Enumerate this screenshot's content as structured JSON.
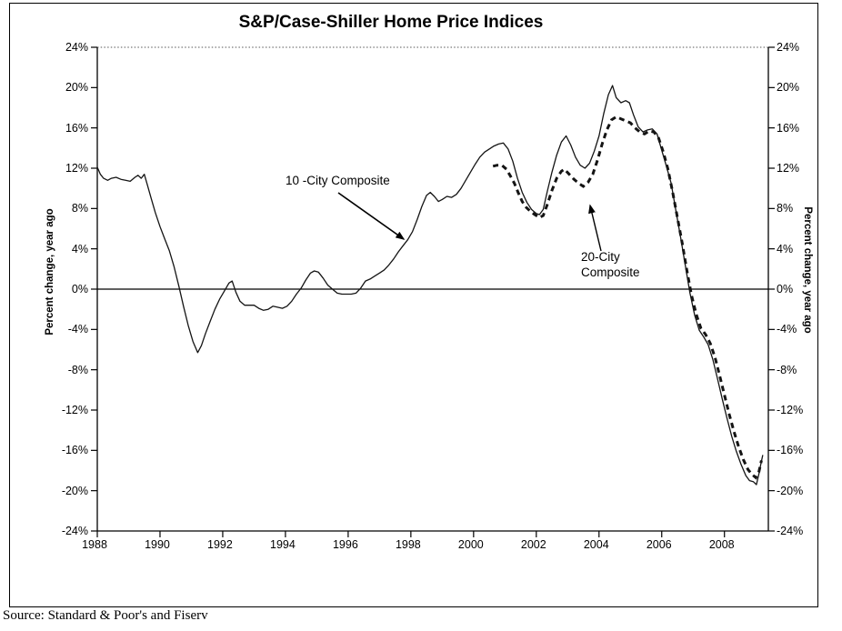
{
  "title": "S&P/Case-Shiller Home Price Indices",
  "source_note": "Source: Standard & Poor's and Fiserv",
  "axes": {
    "left_title": "Percent change, year ago",
    "right_title": "Percent change, year ago"
  },
  "annotations": {
    "series1_label": "10 -City Composite",
    "series2_label_line1": "20-City",
    "series2_label_line2": "Composite"
  },
  "colors": {
    "background": "#ffffff",
    "line": "#141414",
    "text": "#000000",
    "dotted_grid": "#555555"
  },
  "chart_data": {
    "type": "line",
    "title": "S&P/Case-Shiller Home Price Indices",
    "xlabel": "",
    "ylabel": "Percent change, year ago",
    "ylim": [
      -24,
      24
    ],
    "xlim": [
      1988,
      2009.4
    ],
    "y_tick_values": [
      24,
      20,
      16,
      12,
      8,
      4,
      0,
      -4,
      -8,
      -12,
      -16,
      -20,
      -24
    ],
    "y_tick_labels": [
      "24%",
      "20%",
      "16%",
      "12%",
      "8%",
      "4%",
      "0%",
      "-4%",
      "-8%",
      "-12%",
      "-16%",
      "-20%",
      "-24%"
    ],
    "x_tick_values": [
      1988,
      1990,
      1992,
      1994,
      1996,
      1998,
      2000,
      2002,
      2004,
      2006,
      2008
    ],
    "x_tick_labels": [
      "1988",
      "1990",
      "1992",
      "1994",
      "1996",
      "1998",
      "2000",
      "2002",
      "2004",
      "2006",
      "2008"
    ],
    "grid": {
      "top_border_24pct": "dotted",
      "zero_line": "solid",
      "other_gridlines": "none"
    },
    "legend_position": "inline-annotations-with-arrows",
    "series": [
      {
        "name": "10-City Composite",
        "style": "solid",
        "points": [
          [
            1988.0,
            12.1
          ],
          [
            1988.1,
            11.4
          ],
          [
            1988.2,
            11.0
          ],
          [
            1988.33,
            10.8
          ],
          [
            1988.45,
            11.0
          ],
          [
            1988.6,
            11.1
          ],
          [
            1988.75,
            10.9
          ],
          [
            1988.9,
            10.8
          ],
          [
            1989.05,
            10.7
          ],
          [
            1989.2,
            11.1
          ],
          [
            1989.3,
            11.3
          ],
          [
            1989.4,
            11.0
          ],
          [
            1989.5,
            11.4
          ],
          [
            1989.6,
            10.3
          ],
          [
            1989.72,
            9.0
          ],
          [
            1989.85,
            7.6
          ],
          [
            1990.0,
            6.2
          ],
          [
            1990.15,
            5.0
          ],
          [
            1990.3,
            3.8
          ],
          [
            1990.45,
            2.2
          ],
          [
            1990.6,
            0.3
          ],
          [
            1990.75,
            -1.7
          ],
          [
            1990.9,
            -3.6
          ],
          [
            1991.05,
            -5.2
          ],
          [
            1991.2,
            -6.3
          ],
          [
            1991.32,
            -5.6
          ],
          [
            1991.45,
            -4.4
          ],
          [
            1991.6,
            -3.2
          ],
          [
            1991.75,
            -2.0
          ],
          [
            1991.9,
            -1.0
          ],
          [
            1992.05,
            -0.2
          ],
          [
            1992.2,
            0.6
          ],
          [
            1992.3,
            0.8
          ],
          [
            1992.42,
            -0.3
          ],
          [
            1992.55,
            -1.2
          ],
          [
            1992.7,
            -1.6
          ],
          [
            1992.85,
            -1.6
          ],
          [
            1993.0,
            -1.6
          ],
          [
            1993.15,
            -1.9
          ],
          [
            1993.3,
            -2.1
          ],
          [
            1993.45,
            -2.0
          ],
          [
            1993.6,
            -1.7
          ],
          [
            1993.75,
            -1.8
          ],
          [
            1993.9,
            -1.9
          ],
          [
            1994.05,
            -1.7
          ],
          [
            1994.2,
            -1.2
          ],
          [
            1994.35,
            -0.5
          ],
          [
            1994.5,
            0.1
          ],
          [
            1994.65,
            0.9
          ],
          [
            1994.8,
            1.6
          ],
          [
            1994.92,
            1.8
          ],
          [
            1995.05,
            1.7
          ],
          [
            1995.2,
            1.1
          ],
          [
            1995.35,
            0.4
          ],
          [
            1995.5,
            0.0
          ],
          [
            1995.65,
            -0.4
          ],
          [
            1995.8,
            -0.5
          ],
          [
            1995.95,
            -0.5
          ],
          [
            1996.1,
            -0.5
          ],
          [
            1996.25,
            -0.4
          ],
          [
            1996.4,
            0.1
          ],
          [
            1996.55,
            0.8
          ],
          [
            1996.7,
            1.0
          ],
          [
            1996.85,
            1.3
          ],
          [
            1997.0,
            1.6
          ],
          [
            1997.15,
            1.9
          ],
          [
            1997.3,
            2.4
          ],
          [
            1997.45,
            3.0
          ],
          [
            1997.6,
            3.7
          ],
          [
            1997.75,
            4.3
          ],
          [
            1997.9,
            4.9
          ],
          [
            1998.05,
            5.7
          ],
          [
            1998.2,
            6.9
          ],
          [
            1998.35,
            8.2
          ],
          [
            1998.5,
            9.3
          ],
          [
            1998.62,
            9.6
          ],
          [
            1998.75,
            9.2
          ],
          [
            1998.88,
            8.7
          ],
          [
            1999.0,
            8.9
          ],
          [
            1999.15,
            9.2
          ],
          [
            1999.3,
            9.1
          ],
          [
            1999.45,
            9.4
          ],
          [
            1999.6,
            10.0
          ],
          [
            1999.75,
            10.8
          ],
          [
            1999.9,
            11.6
          ],
          [
            2000.05,
            12.4
          ],
          [
            2000.2,
            13.1
          ],
          [
            2000.35,
            13.6
          ],
          [
            2000.5,
            13.9
          ],
          [
            2000.65,
            14.2
          ],
          [
            2000.8,
            14.4
          ],
          [
            2000.95,
            14.5
          ],
          [
            2001.1,
            13.9
          ],
          [
            2001.25,
            12.7
          ],
          [
            2001.4,
            11.0
          ],
          [
            2001.55,
            9.6
          ],
          [
            2001.7,
            8.6
          ],
          [
            2001.85,
            7.9
          ],
          [
            2002.0,
            7.5
          ],
          [
            2002.1,
            7.4
          ],
          [
            2002.22,
            7.9
          ],
          [
            2002.35,
            9.7
          ],
          [
            2002.5,
            11.6
          ],
          [
            2002.65,
            13.3
          ],
          [
            2002.8,
            14.6
          ],
          [
            2002.95,
            15.2
          ],
          [
            2003.1,
            14.3
          ],
          [
            2003.25,
            13.1
          ],
          [
            2003.4,
            12.3
          ],
          [
            2003.55,
            12.0
          ],
          [
            2003.7,
            12.5
          ],
          [
            2003.85,
            13.7
          ],
          [
            2004.0,
            15.2
          ],
          [
            2004.15,
            17.4
          ],
          [
            2004.3,
            19.3
          ],
          [
            2004.43,
            20.2
          ],
          [
            2004.55,
            19.0
          ],
          [
            2004.7,
            18.5
          ],
          [
            2004.85,
            18.7
          ],
          [
            2004.97,
            18.5
          ],
          [
            2005.1,
            17.3
          ],
          [
            2005.25,
            16.1
          ],
          [
            2005.4,
            15.6
          ],
          [
            2005.55,
            15.8
          ],
          [
            2005.7,
            15.9
          ],
          [
            2005.85,
            15.4
          ],
          [
            2006.0,
            13.8
          ],
          [
            2006.15,
            12.2
          ],
          [
            2006.3,
            10.5
          ],
          [
            2006.45,
            7.8
          ],
          [
            2006.6,
            5.2
          ],
          [
            2006.75,
            2.4
          ],
          [
            2006.9,
            -0.4
          ],
          [
            2007.05,
            -2.6
          ],
          [
            2007.2,
            -4.1
          ],
          [
            2007.33,
            -4.7
          ],
          [
            2007.48,
            -5.5
          ],
          [
            2007.63,
            -7.0
          ],
          [
            2007.78,
            -8.9
          ],
          [
            2007.93,
            -10.9
          ],
          [
            2008.08,
            -12.8
          ],
          [
            2008.23,
            -14.6
          ],
          [
            2008.38,
            -16.1
          ],
          [
            2008.53,
            -17.4
          ],
          [
            2008.68,
            -18.5
          ],
          [
            2008.8,
            -19.0
          ],
          [
            2008.92,
            -19.1
          ],
          [
            2009.02,
            -19.4
          ],
          [
            2009.1,
            -18.3
          ],
          [
            2009.17,
            -17.2
          ],
          [
            2009.22,
            -16.5
          ]
        ]
      },
      {
        "name": "20-City Composite",
        "style": "dashed",
        "points": [
          [
            2000.62,
            12.2
          ],
          [
            2000.75,
            12.3
          ],
          [
            2000.9,
            12.3
          ],
          [
            2001.05,
            11.9
          ],
          [
            2001.18,
            11.2
          ],
          [
            2001.3,
            10.5
          ],
          [
            2001.42,
            9.6
          ],
          [
            2001.55,
            8.7
          ],
          [
            2001.68,
            8.1
          ],
          [
            2001.82,
            7.7
          ],
          [
            2001.95,
            7.4
          ],
          [
            2002.1,
            7.1
          ],
          [
            2002.22,
            7.3
          ],
          [
            2002.35,
            8.4
          ],
          [
            2002.5,
            9.8
          ],
          [
            2002.65,
            11.0
          ],
          [
            2002.8,
            11.7
          ],
          [
            2002.9,
            11.9
          ],
          [
            2003.05,
            11.4
          ],
          [
            2003.2,
            10.9
          ],
          [
            2003.35,
            10.5
          ],
          [
            2003.5,
            10.2
          ],
          [
            2003.65,
            10.6
          ],
          [
            2003.8,
            11.4
          ],
          [
            2003.95,
            12.8
          ],
          [
            2004.1,
            14.4
          ],
          [
            2004.25,
            15.8
          ],
          [
            2004.4,
            16.8
          ],
          [
            2004.55,
            17.1
          ],
          [
            2004.7,
            16.9
          ],
          [
            2004.85,
            16.7
          ],
          [
            2005.0,
            16.5
          ],
          [
            2005.15,
            16.0
          ],
          [
            2005.3,
            15.6
          ],
          [
            2005.45,
            15.4
          ],
          [
            2005.6,
            15.7
          ],
          [
            2005.75,
            15.6
          ],
          [
            2005.9,
            15.0
          ],
          [
            2006.05,
            13.6
          ],
          [
            2006.2,
            11.9
          ],
          [
            2006.35,
            9.6
          ],
          [
            2006.5,
            7.1
          ],
          [
            2006.65,
            4.6
          ],
          [
            2006.8,
            1.9
          ],
          [
            2006.95,
            -0.6
          ],
          [
            2007.1,
            -2.5
          ],
          [
            2007.25,
            -3.9
          ],
          [
            2007.4,
            -4.5
          ],
          [
            2007.55,
            -5.4
          ],
          [
            2007.7,
            -6.8
          ],
          [
            2007.85,
            -8.6
          ],
          [
            2008.0,
            -10.5
          ],
          [
            2008.15,
            -12.4
          ],
          [
            2008.3,
            -14.1
          ],
          [
            2008.45,
            -15.6
          ],
          [
            2008.6,
            -16.9
          ],
          [
            2008.75,
            -17.9
          ],
          [
            2008.88,
            -18.4
          ],
          [
            2009.0,
            -18.7
          ],
          [
            2009.1,
            -18.1
          ],
          [
            2009.18,
            -17.0
          ]
        ]
      }
    ]
  }
}
